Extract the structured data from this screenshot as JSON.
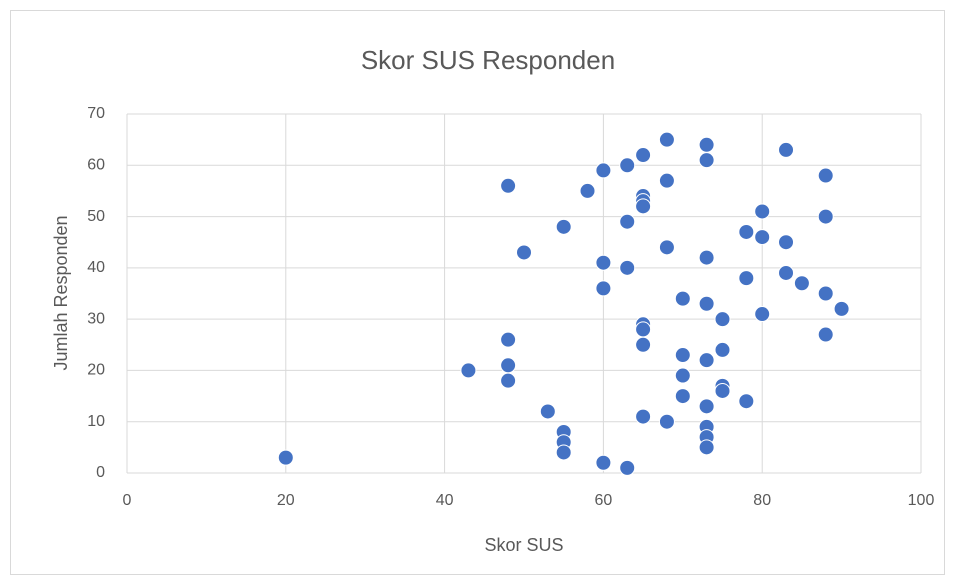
{
  "chart_data": {
    "type": "scatter",
    "title": "Skor SUS Responden",
    "xlabel": "Skor SUS",
    "ylabel": "Jumlah Responden",
    "series": [
      {
        "color": "#4472c4",
        "x": [
          20,
          43,
          48,
          48,
          48,
          48,
          50,
          53,
          55,
          55,
          55,
          55,
          58,
          60,
          60,
          60,
          60,
          63,
          63,
          63,
          63,
          65,
          65,
          65,
          65,
          65,
          65,
          65,
          65,
          68,
          68,
          68,
          68,
          70,
          70,
          70,
          70,
          73,
          73,
          73,
          73,
          73,
          73,
          73,
          73,
          73,
          75,
          75,
          75,
          75,
          78,
          78,
          78,
          80,
          80,
          80,
          83,
          83,
          83,
          85,
          88,
          88,
          88,
          88,
          90
        ],
        "values": [
          3,
          20,
          56,
          26,
          21,
          18,
          43,
          12,
          48,
          8,
          6,
          4,
          55,
          59,
          41,
          36,
          2,
          60,
          49,
          40,
          1,
          62,
          54,
          53,
          52,
          29,
          28,
          25,
          11,
          65,
          57,
          44,
          10,
          34,
          23,
          19,
          15,
          64,
          61,
          42,
          33,
          22,
          13,
          9,
          7,
          5,
          30,
          24,
          17,
          16,
          47,
          38,
          14,
          51,
          46,
          31,
          63,
          45,
          39,
          37,
          58,
          50,
          35,
          27,
          32
        ]
      }
    ],
    "xlim": [
      0,
      100
    ],
    "xticks": [
      0,
      20,
      40,
      60,
      80,
      100
    ],
    "ylim": [
      0,
      70
    ],
    "yticks": [
      0,
      10,
      20,
      30,
      40,
      50,
      60,
      70
    ],
    "grid": true
  }
}
